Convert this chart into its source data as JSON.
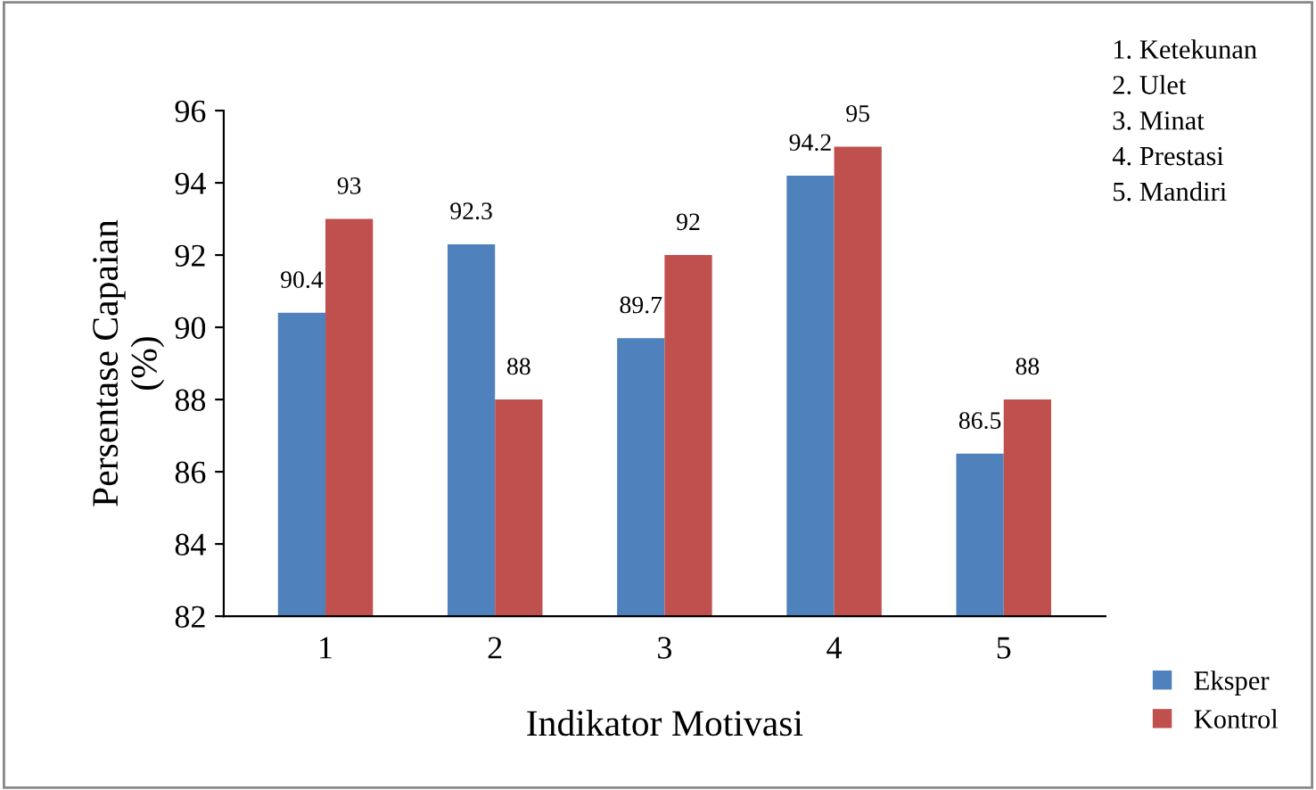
{
  "chart_data": {
    "type": "bar",
    "xlabel": "Indikator Motivasi",
    "ylabel": "Persentase Capaian\n(%)",
    "categories": [
      "1",
      "2",
      "3",
      "4",
      "5"
    ],
    "series": [
      {
        "name": "Eksper",
        "color": "#4f81bd",
        "values": [
          90.4,
          92.3,
          89.7,
          94.2,
          86.5
        ]
      },
      {
        "name": "Kontrol",
        "color": "#c0504d",
        "values": [
          93,
          88,
          92,
          95,
          88
        ]
      }
    ],
    "ylim": [
      82,
      96
    ],
    "yticks": [
      82,
      84,
      86,
      88,
      90,
      92,
      94,
      96
    ],
    "grid": false,
    "legend": "bottom right",
    "data_labels": true,
    "annotations": [
      "1. Ketekunan",
      "2. Ulet",
      "3. Minat",
      "4. Prestasi",
      "5. Mandiri"
    ]
  }
}
